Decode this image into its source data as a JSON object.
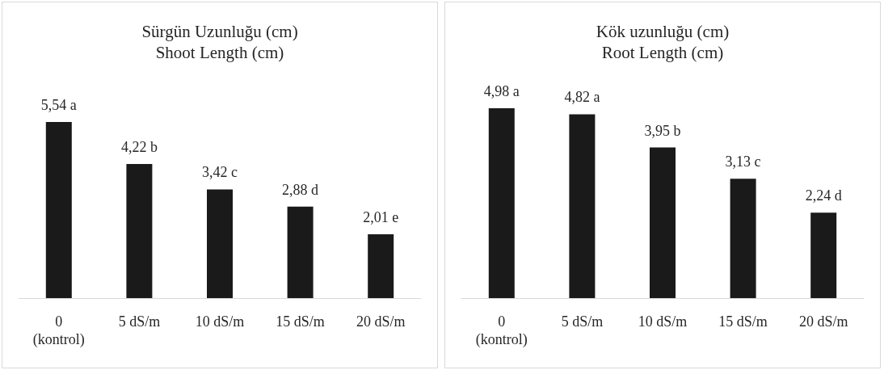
{
  "chart_data": [
    {
      "type": "bar",
      "title": "Sürgün Uzunluğu (cm)\nShoot Length (cm)",
      "categories": [
        "0\n(kontrol)",
        "5 dS/m",
        "10 dS/m",
        "15 dS/m",
        "20 dS/m"
      ],
      "values": [
        5.54,
        4.22,
        3.42,
        2.88,
        2.01
      ],
      "value_labels": [
        "5,54 a",
        "4,22 b",
        "3,42 c",
        "2,88 d",
        "2,01 e"
      ],
      "color": "#1a1a1a"
    },
    {
      "type": "bar",
      "title": "Kök uzunluğu (cm)\nRoot Length (cm)",
      "categories": [
        "0\n(kontrol)",
        "5 dS/m",
        "10 dS/m",
        "15 dS/m",
        "20 dS/m"
      ],
      "values": [
        4.98,
        4.82,
        3.95,
        3.13,
        2.24
      ],
      "value_labels": [
        "4,98 a",
        "4,82 a",
        "3,95 b",
        "3,13 c",
        "2,24 d"
      ],
      "color": "#1a1a1a"
    }
  ]
}
